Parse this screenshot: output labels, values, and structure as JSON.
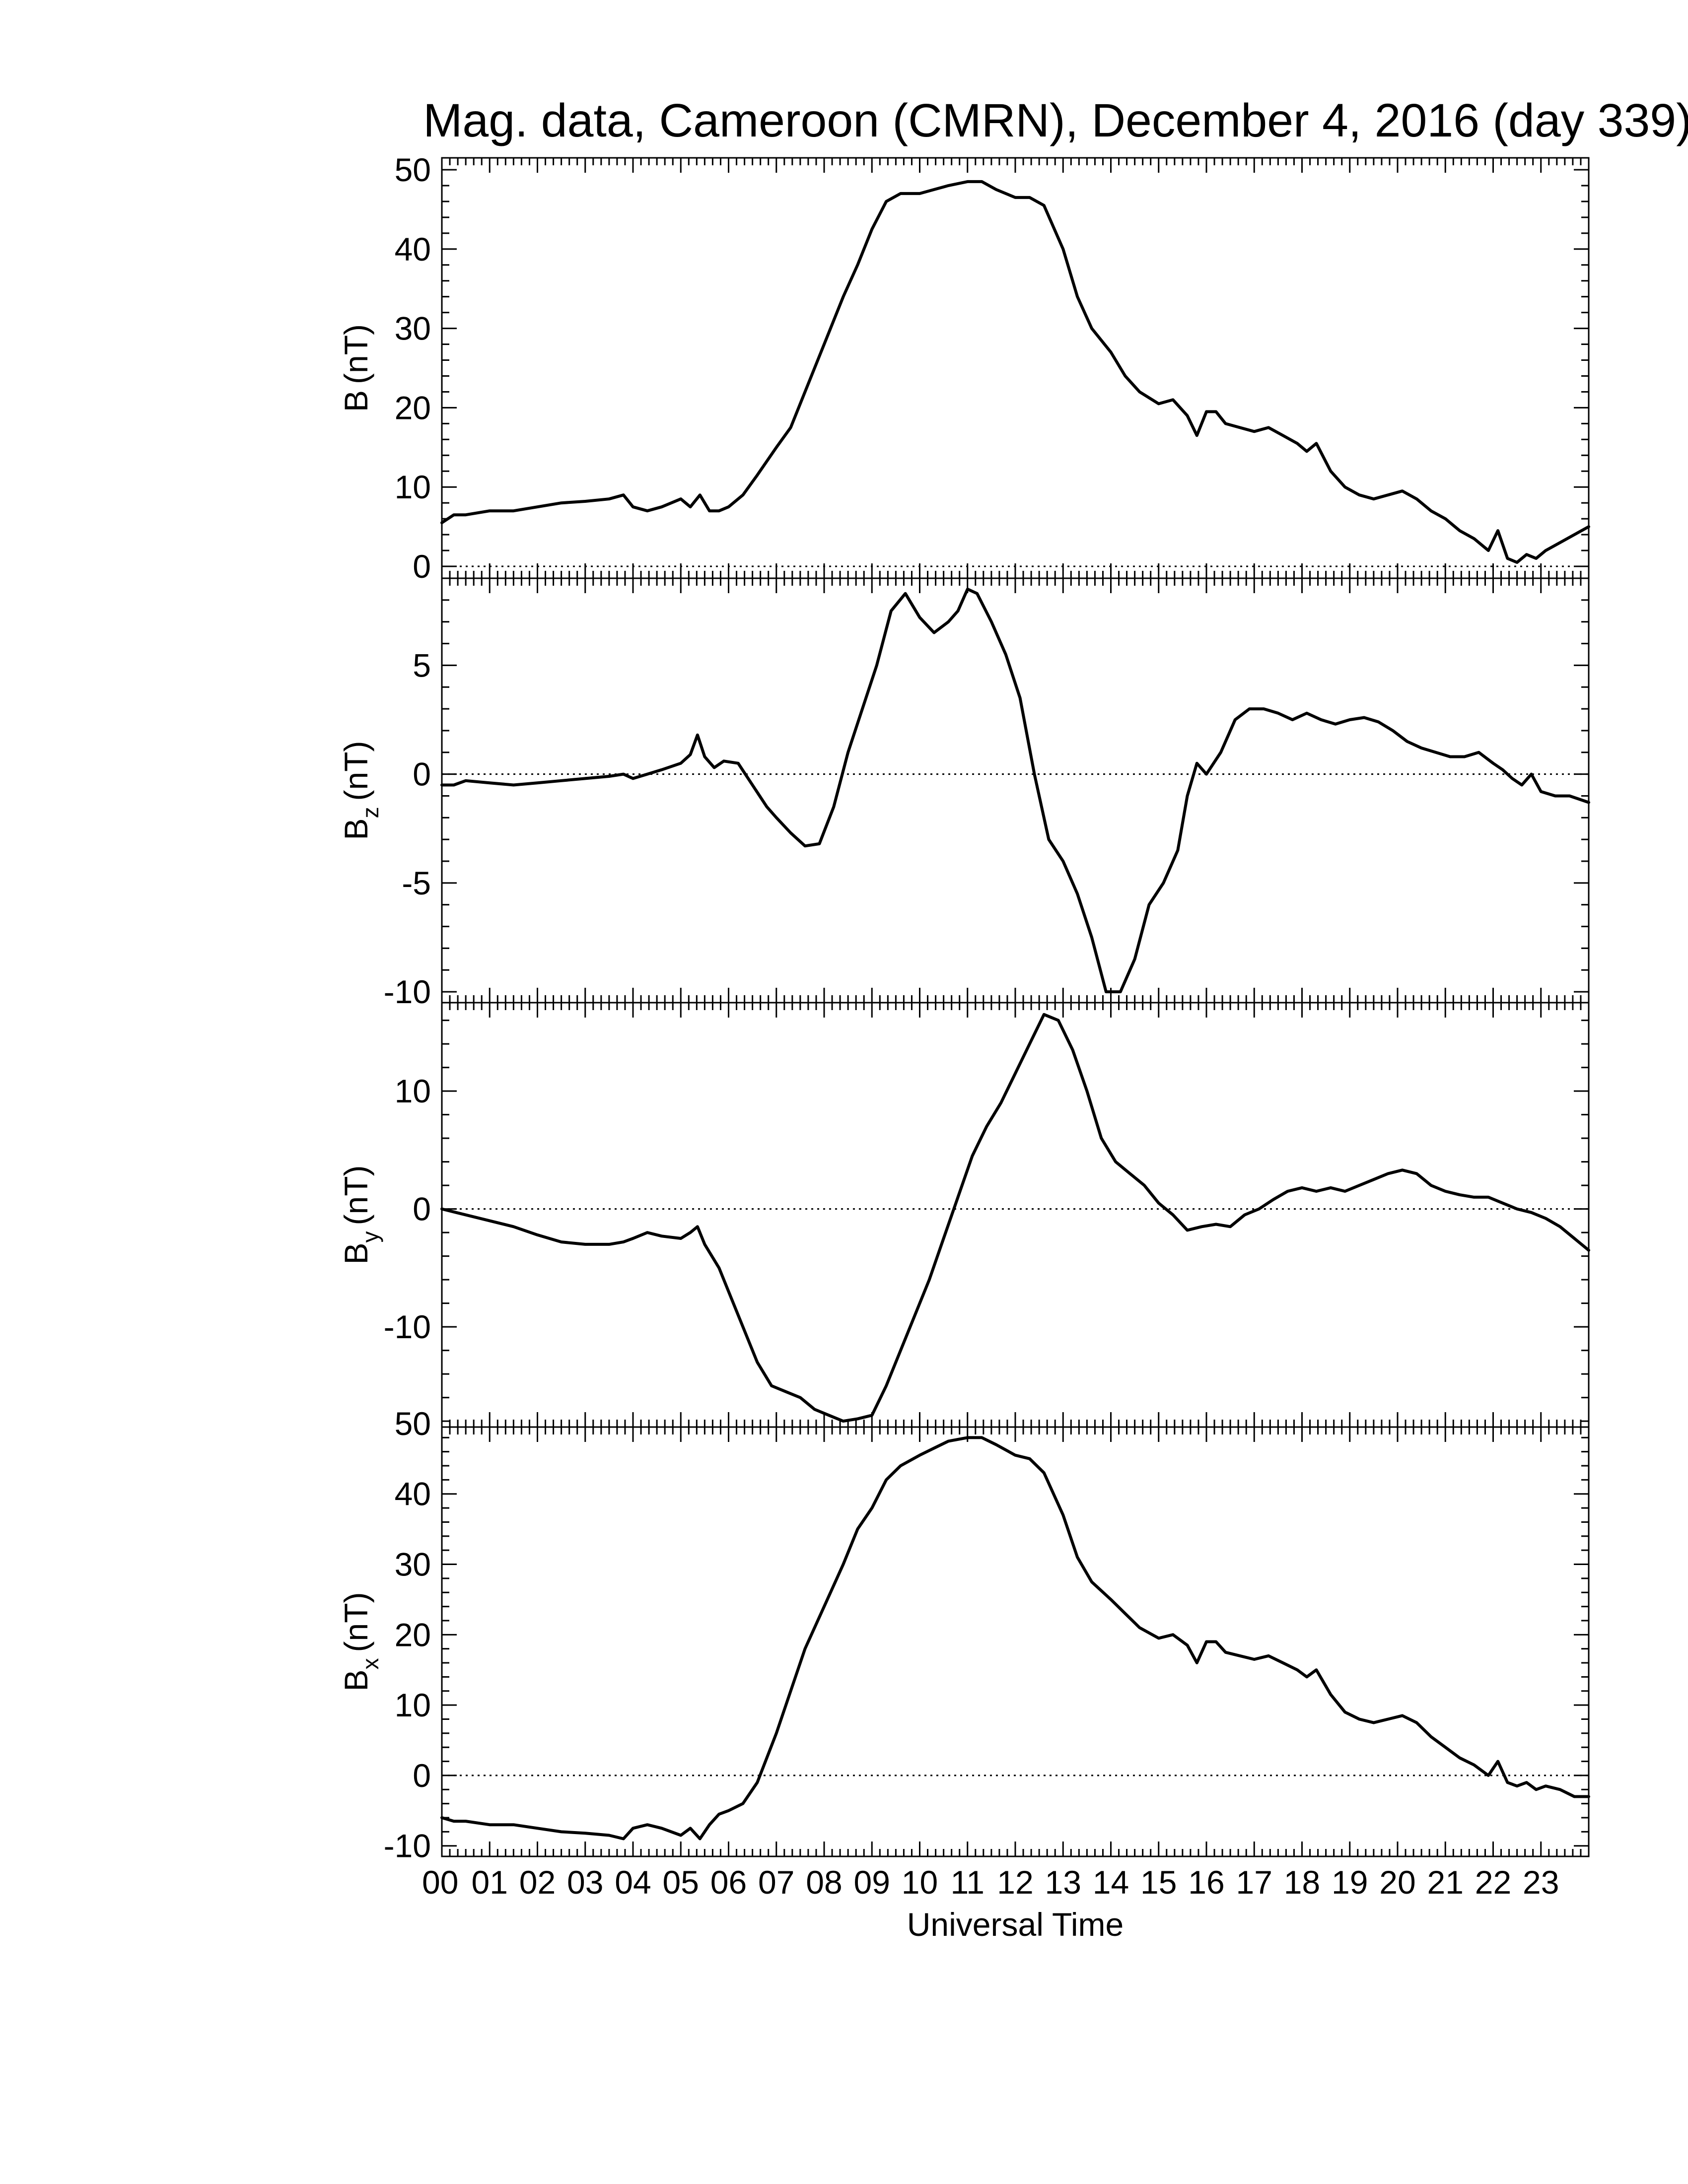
{
  "figure": {
    "title": "Mag. data, Cameroon (CMRN), December 4, 2016 (day 339)",
    "xlabel": "Universal Time",
    "line_color": "#000000",
    "zero_line_color": "#000000"
  },
  "chart_data": [
    {
      "type": "line",
      "panel": "B",
      "ylabel": {
        "base": "B",
        "sub": "",
        "unit": "(nT)"
      },
      "ylim": [
        -1.5,
        51.5
      ],
      "yticks": [
        0,
        10,
        20,
        30,
        40,
        50
      ],
      "xlim": [
        0,
        24
      ],
      "grid": false,
      "zero_line": true,
      "series": [
        {
          "x": [
            0.0,
            0.25,
            0.5,
            1.0,
            1.5,
            2.0,
            2.5,
            3.0,
            3.5,
            3.8,
            4.0,
            4.3,
            4.6,
            5.0,
            5.2,
            5.4,
            5.6,
            5.8,
            6.0,
            6.3,
            6.6,
            7.0,
            7.3,
            7.6,
            8.0,
            8.4,
            8.7,
            9.0,
            9.3,
            9.6,
            10.0,
            10.3,
            10.6,
            11.0,
            11.3,
            11.6,
            12.0,
            12.3,
            12.6,
            13.0,
            13.3,
            13.6,
            14.0,
            14.3,
            14.6,
            15.0,
            15.3,
            15.6,
            15.8,
            16.0,
            16.2,
            16.4,
            16.7,
            17.0,
            17.3,
            17.6,
            17.9,
            18.1,
            18.3,
            18.6,
            18.9,
            19.2,
            19.5,
            19.8,
            20.1,
            20.4,
            20.7,
            21.0,
            21.3,
            21.6,
            21.9,
            22.1,
            22.3,
            22.5,
            22.7,
            22.9,
            23.1,
            23.4,
            23.7,
            24.0
          ],
          "y": [
            5.5,
            6.5,
            6.5,
            7.0,
            7.0,
            7.5,
            8.0,
            8.2,
            8.5,
            9.0,
            7.5,
            7.0,
            7.5,
            8.5,
            7.5,
            9.0,
            7.0,
            7.0,
            7.5,
            9.0,
            11.5,
            15.0,
            17.5,
            22.0,
            28.0,
            34.0,
            38.0,
            42.5,
            46.0,
            47.0,
            47.0,
            47.5,
            48.0,
            48.5,
            48.5,
            47.5,
            46.5,
            46.5,
            45.5,
            40.0,
            34.0,
            30.0,
            27.0,
            24.0,
            22.0,
            20.5,
            21.0,
            19.0,
            16.5,
            19.5,
            19.5,
            18.0,
            17.5,
            17.0,
            17.5,
            16.5,
            15.5,
            14.5,
            15.5,
            12.0,
            10.0,
            9.0,
            8.5,
            9.0,
            9.5,
            8.5,
            7.0,
            6.0,
            4.5,
            3.5,
            2.0,
            4.5,
            1.0,
            0.5,
            1.5,
            1.0,
            2.0,
            3.0,
            4.0,
            5.0
          ]
        }
      ]
    },
    {
      "type": "line",
      "panel": "Bz",
      "ylabel": {
        "base": "B",
        "sub": "z",
        "unit": "(nT)"
      },
      "ylim": [
        -10.5,
        9.0
      ],
      "yticks": [
        -10,
        -5,
        0,
        5
      ],
      "xlim": [
        0,
        24
      ],
      "grid": false,
      "zero_line": true,
      "series": [
        {
          "x": [
            0.0,
            0.25,
            0.5,
            1.0,
            1.5,
            2.0,
            2.5,
            3.0,
            3.5,
            3.8,
            4.0,
            4.3,
            4.6,
            5.0,
            5.2,
            5.35,
            5.5,
            5.7,
            5.9,
            6.2,
            6.5,
            6.8,
            7.0,
            7.3,
            7.6,
            7.9,
            8.2,
            8.5,
            8.8,
            9.1,
            9.4,
            9.7,
            10.0,
            10.3,
            10.6,
            10.8,
            11.0,
            11.2,
            11.5,
            11.8,
            12.1,
            12.4,
            12.7,
            13.0,
            13.3,
            13.6,
            13.9,
            14.2,
            14.5,
            14.8,
            15.1,
            15.4,
            15.6,
            15.8,
            16.0,
            16.3,
            16.6,
            16.9,
            17.2,
            17.5,
            17.8,
            18.1,
            18.4,
            18.7,
            19.0,
            19.3,
            19.6,
            19.9,
            20.2,
            20.5,
            20.8,
            21.1,
            21.4,
            21.7,
            22.0,
            22.2,
            22.4,
            22.6,
            22.8,
            23.0,
            23.3,
            23.6,
            24.0
          ],
          "y": [
            -0.5,
            -0.5,
            -0.3,
            -0.4,
            -0.5,
            -0.4,
            -0.3,
            -0.2,
            -0.1,
            0.0,
            -0.2,
            0.0,
            0.2,
            0.5,
            0.9,
            1.8,
            0.8,
            0.3,
            0.6,
            0.5,
            -0.5,
            -1.5,
            -2.0,
            -2.7,
            -3.3,
            -3.2,
            -1.5,
            1.0,
            3.0,
            5.0,
            7.5,
            8.3,
            7.2,
            6.5,
            7.0,
            7.5,
            8.5,
            8.3,
            7.0,
            5.5,
            3.5,
            0.0,
            -3.0,
            -4.0,
            -5.5,
            -7.5,
            -10.0,
            -10.0,
            -8.5,
            -6.0,
            -5.0,
            -3.5,
            -1.0,
            0.5,
            0.0,
            1.0,
            2.5,
            3.0,
            3.0,
            2.8,
            2.5,
            2.8,
            2.5,
            2.3,
            2.5,
            2.6,
            2.4,
            2.0,
            1.5,
            1.2,
            1.0,
            0.8,
            0.8,
            1.0,
            0.5,
            0.2,
            -0.2,
            -0.5,
            0.0,
            -0.8,
            -1.0,
            -1.0,
            -1.3
          ]
        }
      ]
    },
    {
      "type": "line",
      "panel": "By",
      "ylabel": {
        "base": "B",
        "sub": "y",
        "unit": "(nT)"
      },
      "ylim": [
        -18.5,
        17.5
      ],
      "yticks": [
        -10,
        0,
        10
      ],
      "xlim": [
        0,
        24
      ],
      "grid": false,
      "zero_line": true,
      "series": [
        {
          "x": [
            0.0,
            0.3,
            0.6,
            1.0,
            1.5,
            2.0,
            2.5,
            3.0,
            3.5,
            3.8,
            4.0,
            4.3,
            4.6,
            5.0,
            5.2,
            5.35,
            5.5,
            5.8,
            6.0,
            6.3,
            6.6,
            6.9,
            7.2,
            7.5,
            7.8,
            8.1,
            8.4,
            8.7,
            9.0,
            9.3,
            9.6,
            9.9,
            10.2,
            10.5,
            10.8,
            11.1,
            11.4,
            11.7,
            12.0,
            12.3,
            12.6,
            12.9,
            13.2,
            13.5,
            13.8,
            14.1,
            14.4,
            14.7,
            15.0,
            15.3,
            15.6,
            15.9,
            16.2,
            16.5,
            16.8,
            17.1,
            17.4,
            17.7,
            18.0,
            18.3,
            18.6,
            18.9,
            19.2,
            19.5,
            19.8,
            20.1,
            20.4,
            20.7,
            21.0,
            21.3,
            21.6,
            21.9,
            22.2,
            22.5,
            22.8,
            23.1,
            23.4,
            23.7,
            24.0
          ],
          "y": [
            0.0,
            -0.3,
            -0.6,
            -1.0,
            -1.5,
            -2.2,
            -2.8,
            -3.0,
            -3.0,
            -2.8,
            -2.5,
            -2.0,
            -2.3,
            -2.5,
            -2.0,
            -1.5,
            -3.0,
            -5.0,
            -7.0,
            -10.0,
            -13.0,
            -15.0,
            -15.5,
            -16.0,
            -17.0,
            -17.5,
            -18.0,
            -17.8,
            -17.5,
            -15.0,
            -12.0,
            -9.0,
            -6.0,
            -2.5,
            1.0,
            4.5,
            7.0,
            9.0,
            11.5,
            14.0,
            16.5,
            16.0,
            13.5,
            10.0,
            6.0,
            4.0,
            3.0,
            2.0,
            0.5,
            -0.5,
            -1.8,
            -1.5,
            -1.3,
            -1.5,
            -0.5,
            0.0,
            0.8,
            1.5,
            1.8,
            1.5,
            1.8,
            1.5,
            2.0,
            2.5,
            3.0,
            3.3,
            3.0,
            2.0,
            1.5,
            1.2,
            1.0,
            1.0,
            0.5,
            0.0,
            -0.3,
            -0.8,
            -1.5,
            -2.5,
            -3.5
          ]
        }
      ]
    },
    {
      "type": "line",
      "panel": "Bx",
      "ylabel": {
        "base": "B",
        "sub": "x",
        "unit": "(nT)"
      },
      "ylim": [
        -11.5,
        49.5
      ],
      "yticks": [
        -10,
        0,
        10,
        20,
        30,
        40,
        50
      ],
      "xlim": [
        0,
        24
      ],
      "grid": false,
      "zero_line": true,
      "series": [
        {
          "x": [
            0.0,
            0.25,
            0.5,
            1.0,
            1.5,
            2.0,
            2.5,
            3.0,
            3.5,
            3.8,
            4.0,
            4.3,
            4.6,
            5.0,
            5.2,
            5.4,
            5.6,
            5.8,
            6.0,
            6.3,
            6.6,
            7.0,
            7.3,
            7.6,
            8.0,
            8.4,
            8.7,
            9.0,
            9.3,
            9.6,
            10.0,
            10.3,
            10.6,
            11.0,
            11.3,
            11.6,
            12.0,
            12.3,
            12.6,
            13.0,
            13.3,
            13.6,
            14.0,
            14.3,
            14.6,
            15.0,
            15.3,
            15.6,
            15.8,
            16.0,
            16.2,
            16.4,
            16.7,
            17.0,
            17.3,
            17.6,
            17.9,
            18.1,
            18.3,
            18.6,
            18.9,
            19.2,
            19.5,
            19.8,
            20.1,
            20.4,
            20.7,
            21.0,
            21.3,
            21.6,
            21.9,
            22.1,
            22.3,
            22.5,
            22.7,
            22.9,
            23.1,
            23.4,
            23.7,
            24.0
          ],
          "y": [
            -6.0,
            -6.5,
            -6.5,
            -7.0,
            -7.0,
            -7.5,
            -8.0,
            -8.2,
            -8.5,
            -9.0,
            -7.5,
            -7.0,
            -7.5,
            -8.5,
            -7.5,
            -9.0,
            -7.0,
            -5.5,
            -5.0,
            -4.0,
            -1.0,
            6.0,
            12.0,
            18.0,
            24.0,
            30.0,
            35.0,
            38.0,
            42.0,
            44.0,
            45.5,
            46.5,
            47.5,
            48.0,
            48.0,
            47.0,
            45.5,
            45.0,
            43.0,
            37.0,
            31.0,
            27.5,
            25.0,
            23.0,
            21.0,
            19.5,
            20.0,
            18.5,
            16.0,
            19.0,
            19.0,
            17.5,
            17.0,
            16.5,
            17.0,
            16.0,
            15.0,
            14.0,
            15.0,
            11.5,
            9.0,
            8.0,
            7.5,
            8.0,
            8.5,
            7.5,
            5.5,
            4.0,
            2.5,
            1.5,
            0.0,
            2.0,
            -1.0,
            -1.5,
            -1.0,
            -2.0,
            -1.5,
            -2.0,
            -3.0,
            -3.0
          ]
        }
      ]
    }
  ],
  "x_axis": {
    "tick_labels": [
      "00",
      "01",
      "02",
      "03",
      "04",
      "05",
      "06",
      "07",
      "08",
      "09",
      "10",
      "11",
      "12",
      "13",
      "14",
      "15",
      "16",
      "17",
      "18",
      "19",
      "20",
      "21",
      "22",
      "23"
    ]
  }
}
